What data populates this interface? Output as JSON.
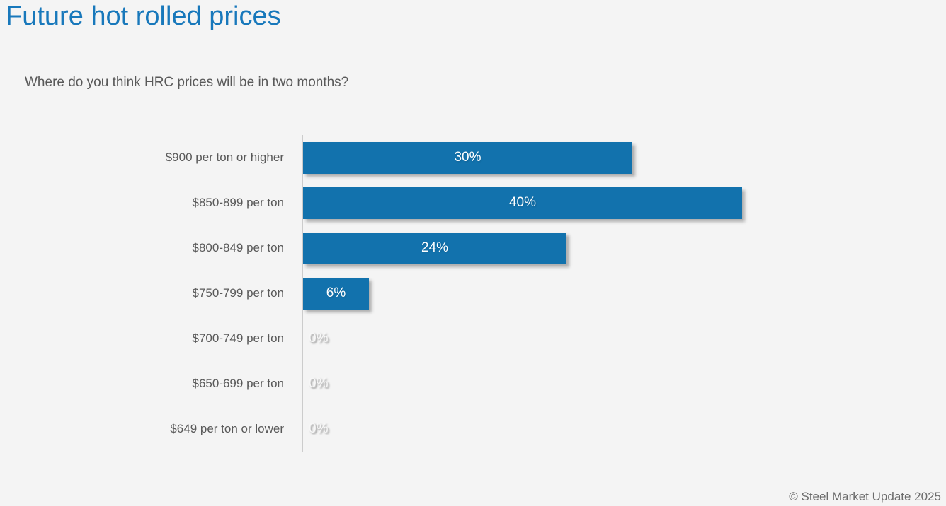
{
  "page": {
    "title": "Future hot rolled prices",
    "question": "Where do you think HRC prices will be in two months?",
    "footer": "© Steel Market Update 2025"
  },
  "colors": {
    "background": "#f4f4f4",
    "title_blue": "#1878bb",
    "bar_blue": "#1272ad",
    "label_gray": "#595959",
    "footer_gray": "#6b6b6b",
    "axis_line": "#cccccc",
    "value_label_on_bar": "#ffffff"
  },
  "chart_data": {
    "type": "bar",
    "orientation": "horizontal",
    "title": "Future hot rolled prices",
    "subtitle": "Where do you think HRC prices will be in two months?",
    "categories": [
      "$900 per ton or higher",
      "$850-899 per ton",
      "$800-849 per ton",
      "$750-799 per ton",
      "$700-749 per ton",
      "$650-699 per ton",
      "$649 per ton or lower"
    ],
    "values": [
      30,
      40,
      24,
      6,
      0,
      0,
      0
    ],
    "value_labels": [
      "30%",
      "40%",
      "24%",
      "6%",
      "0%",
      "0%",
      "0%"
    ],
    "xlabel": "",
    "ylabel": "",
    "xlim": [
      0,
      58
    ],
    "grid": false,
    "legend": false,
    "value_label_position": "center-of-bar"
  }
}
